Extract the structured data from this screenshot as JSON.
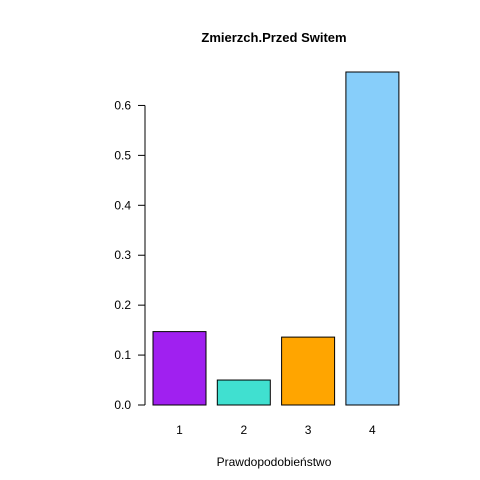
{
  "chart_data": {
    "type": "bar",
    "title": "Zmierzch.Przed Switem",
    "xlabel": "Prawdopodobieństwo",
    "ylabel": "",
    "categories": [
      "1",
      "2",
      "3",
      "4"
    ],
    "values": [
      0.147,
      0.05,
      0.136,
      0.667
    ],
    "colors": [
      "#A020F0",
      "#40E0D0",
      "#FFA500",
      "#87CEFA"
    ],
    "ylim": [
      0,
      0.667
    ],
    "yticks": [
      0.0,
      0.1,
      0.2,
      0.3,
      0.4,
      0.5,
      0.6
    ],
    "ytick_labels": [
      "0.0",
      "0.1",
      "0.2",
      "0.3",
      "0.4",
      "0.5",
      "0.6"
    ],
    "grid": false,
    "legend": "none"
  }
}
